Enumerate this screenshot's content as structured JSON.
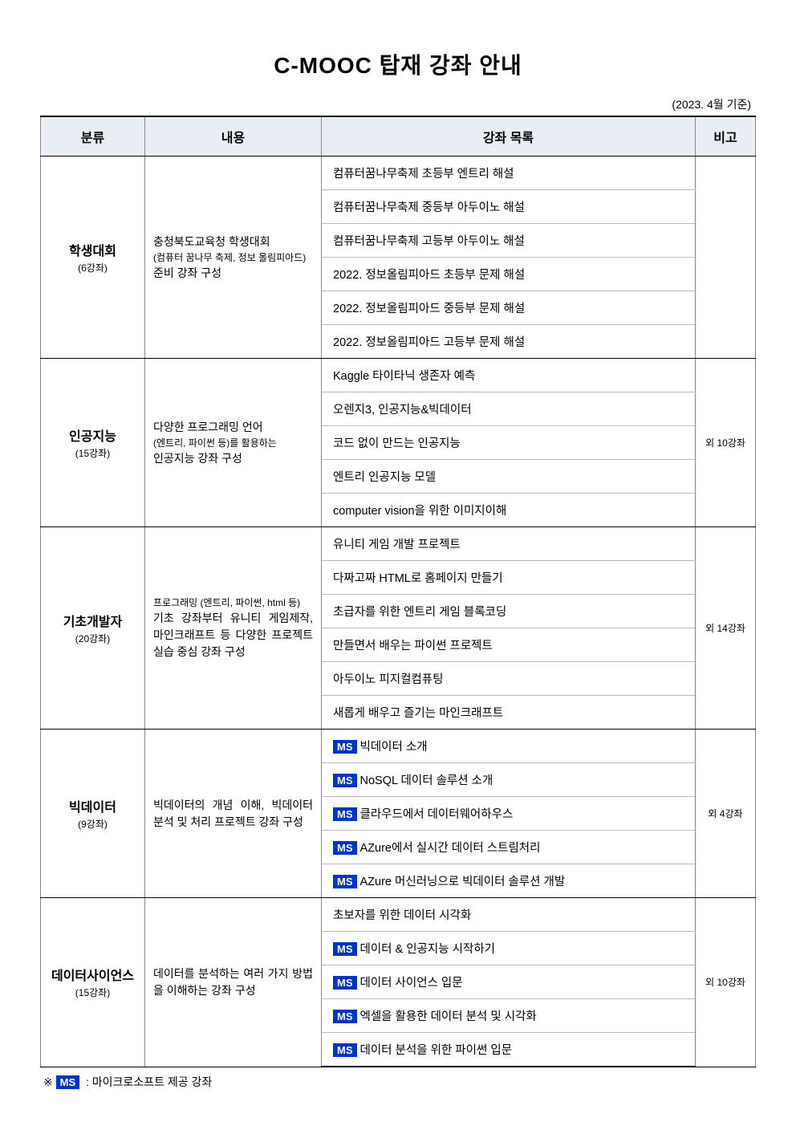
{
  "title": "C-MOOC 탑재 강좌 안내",
  "date_note": "(2023. 4월 기준)",
  "headers": {
    "category": "분류",
    "desc": "내용",
    "courses": "강좌 목록",
    "note": "비고"
  },
  "colors": {
    "header_bg": "#e8eef4",
    "ms_badge_bg": "#0033cc",
    "ms_badge_fg": "#ffffff",
    "border_main": "#000000",
    "border_light": "#bbbbbb"
  },
  "groups": [
    {
      "name": "학생대회",
      "count": "(6강좌)",
      "desc_lines": [
        "충청북도교육청 학생대회",
        "(컴퓨터 꿈나무 축제, 정보 올림피아드)",
        "준비 강좌 구성"
      ],
      "desc_small_idx": 1,
      "note": "",
      "courses": [
        {
          "ms": false,
          "text": "컴퓨터꿈나무축제 초등부 엔트리 해설"
        },
        {
          "ms": false,
          "text": "컴퓨터꿈나무축제 중등부 아두이노 해설"
        },
        {
          "ms": false,
          "text": "컴퓨터꿈나무축제 고등부 아두이노 해설"
        },
        {
          "ms": false,
          "text": "2022. 정보올림피아드 초등부 문제 해설"
        },
        {
          "ms": false,
          "text": "2022. 정보올림피아드 중등부 문제 해설"
        },
        {
          "ms": false,
          "text": "2022. 정보올림피아드 고등부 문제 해설"
        }
      ]
    },
    {
      "name": "인공지능",
      "count": "(15강좌)",
      "desc_lines": [
        "다양한 프로그래밍 언어",
        "(엔트리, 파이썬 등)를 활용하는",
        "인공지능 강좌 구성"
      ],
      "desc_small_idx": 1,
      "note": "외 10강좌",
      "courses": [
        {
          "ms": false,
          "text": "Kaggle 타이타닉 생존자 예측"
        },
        {
          "ms": false,
          "text": "오렌지3, 인공지능&빅데이터"
        },
        {
          "ms": false,
          "text": "코드 없이 만드는 인공지능"
        },
        {
          "ms": false,
          "text": "엔트리 인공지능 모델"
        },
        {
          "ms": false,
          "text": "computer vision을 위한 이미지이해"
        }
      ]
    },
    {
      "name": "기초개발자",
      "count": "(20강좌)",
      "desc_lines": [
        "프로그래밍 (엔트리, 파이썬, html 등)",
        "기초 강좌부터 유니티 게임제작, 마인크래프트 등 다양한 프로젝트 실습 중심 강좌 구성"
      ],
      "desc_small_idx": 0,
      "note": "외 14강좌",
      "courses": [
        {
          "ms": false,
          "text": "유니티 게임 개발 프로젝트"
        },
        {
          "ms": false,
          "text": "다짜고짜 HTML로 홈페이지 만들기"
        },
        {
          "ms": false,
          "text": "초급자를 위한 엔트리 게임 블록코딩"
        },
        {
          "ms": false,
          "text": "만들면서 배우는 파이썬 프로젝트"
        },
        {
          "ms": false,
          "text": "아두이노 피지컬컴퓨팅"
        },
        {
          "ms": false,
          "text": "새롭게 배우고 즐기는 마인크래프트"
        }
      ]
    },
    {
      "name": "빅데이터",
      "count": "(9강좌)",
      "desc_lines": [
        "빅데이터의 개념 이해, 빅데이터 분석 및 처리 프로젝트 강좌 구성"
      ],
      "desc_small_idx": -1,
      "note": "외 4강좌",
      "courses": [
        {
          "ms": true,
          "text": "빅데이터 소개"
        },
        {
          "ms": true,
          "text": "NoSQL 데이터 솔루션 소개"
        },
        {
          "ms": true,
          "text": "클라우드에서 데이터웨어하우스"
        },
        {
          "ms": true,
          "text": "AZure에서 실시간 데이터 스트림처리"
        },
        {
          "ms": true,
          "text": "AZure 머신러닝으로 빅데이터 솔루션 개발"
        }
      ]
    },
    {
      "name": "데이터사이언스",
      "count": "(15강좌)",
      "desc_lines": [
        "데이터를 분석하는 여러 가지 방법을 이해하는  강좌 구성"
      ],
      "desc_small_idx": -1,
      "note": "외 10강좌",
      "courses": [
        {
          "ms": false,
          "text": "초보자를 위한 데이터 시각화"
        },
        {
          "ms": true,
          "text": "데이터 & 인공지능 시작하기"
        },
        {
          "ms": true,
          "text": "데이터 사이언스 입문"
        },
        {
          "ms": true,
          "text": "엑셀을 활용한 데이터 분석 및 시각화"
        },
        {
          "ms": true,
          "text": "데이터 분석을 위한 파이썬 입문"
        }
      ]
    }
  ],
  "ms_label": "MS",
  "footnote_prefix": "※",
  "footnote_text": ": 마이크로소프트 제공 강좌"
}
